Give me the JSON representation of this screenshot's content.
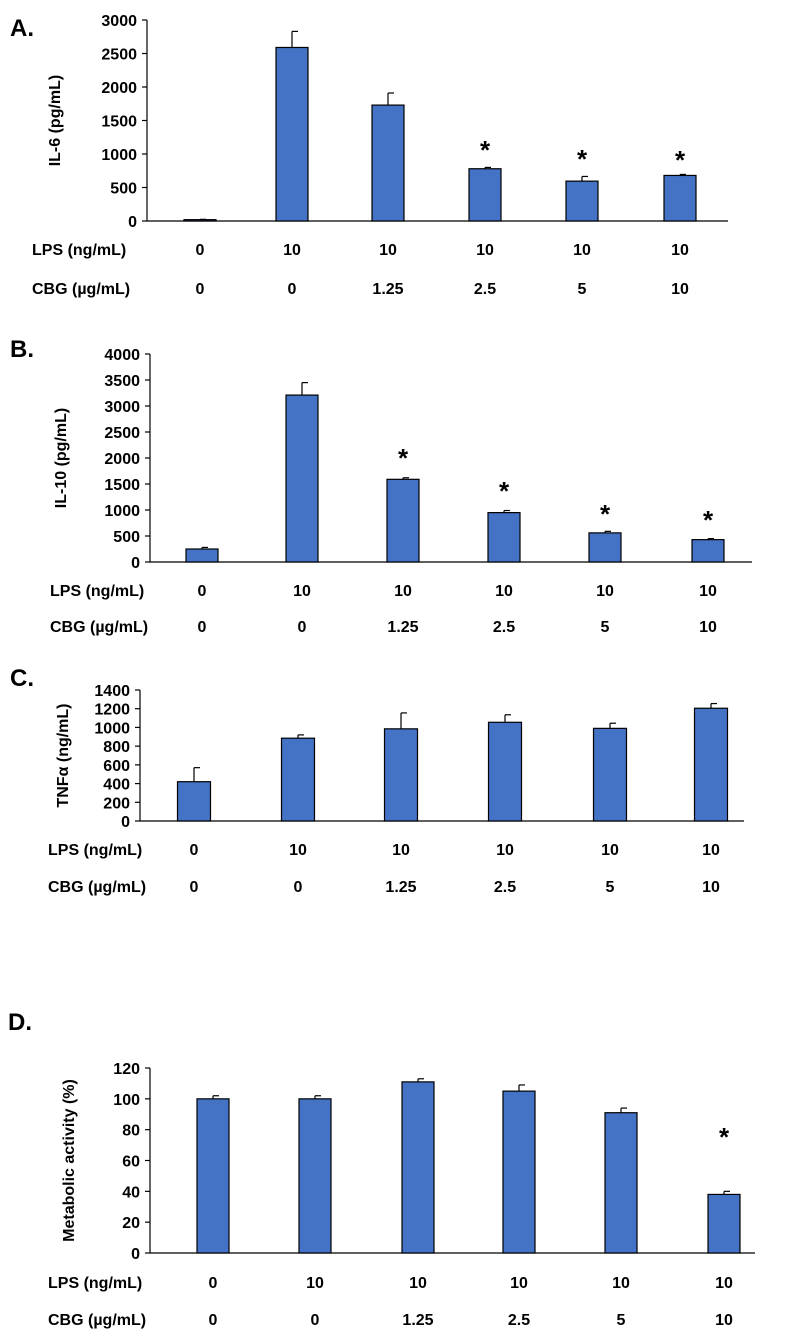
{
  "bar_color": "#4472C4",
  "row_labels": {
    "lps": "LPS (ng/mL)",
    "cbg": "CBG (µg/mL)"
  },
  "conditions": {
    "lps": [
      "0",
      "10",
      "10",
      "10",
      "10",
      "10"
    ],
    "cbg": [
      "0",
      "0",
      "1.25",
      "2.5",
      "5",
      "10"
    ]
  },
  "chart_data": [
    {
      "panel": "A.",
      "type": "bar",
      "ylabel": "IL-6 (pg/mL)",
      "ylim": [
        0,
        3000
      ],
      "yticks": [
        "0",
        "500",
        "1000",
        "1500",
        "2000",
        "2500",
        "3000"
      ],
      "values": [
        20,
        2590,
        1730,
        780,
        595,
        680
      ],
      "errors": [
        5,
        240,
        180,
        20,
        70,
        15
      ],
      "significance": [
        "",
        "",
        "",
        "*",
        "*",
        "*"
      ]
    },
    {
      "panel": "B.",
      "type": "bar",
      "ylabel": "IL-10 (pg/mL)",
      "ylim": [
        0,
        4000
      ],
      "yticks": [
        "0",
        "500",
        "1000",
        "1500",
        "2000",
        "2500",
        "3000",
        "3500",
        "4000"
      ],
      "values": [
        250,
        3210,
        1590,
        950,
        560,
        430
      ],
      "errors": [
        30,
        240,
        30,
        40,
        30,
        20
      ],
      "significance": [
        "",
        "",
        "*",
        "*",
        "*",
        "*"
      ]
    },
    {
      "panel": "C.",
      "type": "bar",
      "ylabel": "TNFα (ng/mL)",
      "ylim": [
        0,
        1400
      ],
      "yticks": [
        "0",
        "200",
        "400",
        "600",
        "800",
        "1000",
        "1200",
        "1400"
      ],
      "values": [
        420,
        885,
        985,
        1055,
        990,
        1205
      ],
      "errors": [
        150,
        35,
        170,
        80,
        55,
        50
      ],
      "significance": [
        "",
        "",
        "",
        "",
        "",
        ""
      ]
    },
    {
      "panel": "D.",
      "type": "bar",
      "ylabel": "Metabolic activity (%)",
      "ylim": [
        0,
        120
      ],
      "yticks": [
        "0",
        "20",
        "40",
        "60",
        "80",
        "100",
        "120"
      ],
      "values": [
        100,
        100,
        111,
        105,
        91,
        38
      ],
      "errors": [
        2,
        2,
        2,
        4,
        3,
        2
      ],
      "significance": [
        "",
        "",
        "",
        "",
        "",
        "*"
      ]
    }
  ]
}
